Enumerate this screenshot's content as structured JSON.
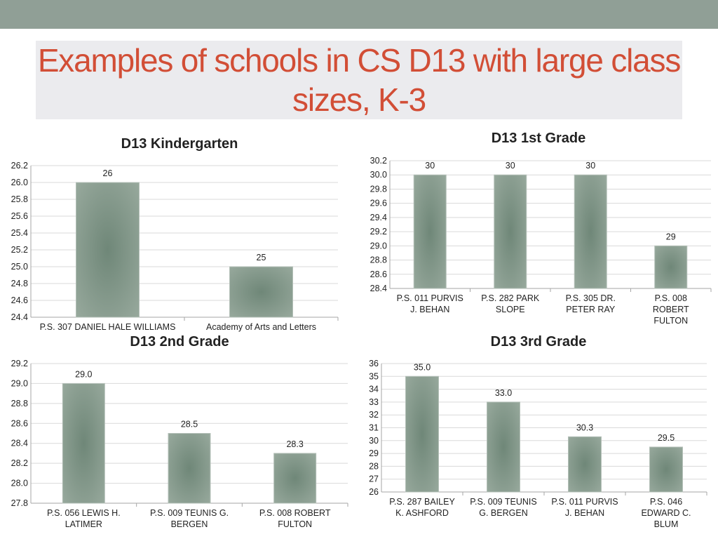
{
  "slide": {
    "title": "Examples of schools in CS D13 with large class sizes, K-3",
    "colors": {
      "top_band": "#909f96",
      "title_box": "#ebebee",
      "title_text": "#d24e36",
      "bar": "#7d9385"
    }
  },
  "chart_data": [
    {
      "type": "bar",
      "title": "D13 Kindergarten",
      "categories": [
        [
          "P.S. 307 DANIEL HALE WILLIAMS"
        ],
        [
          "Academy of Arts and Letters"
        ]
      ],
      "values": [
        26,
        25
      ],
      "data_labels": [
        "26",
        "25"
      ],
      "ylim": [
        24.4,
        26.2
      ],
      "ytick_step": 0.2,
      "ytick_decimals": 1,
      "xlabel": "",
      "ylabel": "",
      "grid": true,
      "legend": "none"
    },
    {
      "type": "bar",
      "title": "D13 1st Grade",
      "categories": [
        [
          "P.S. 011 PURVIS",
          "J. BEHAN"
        ],
        [
          "P.S. 282 PARK",
          "SLOPE"
        ],
        [
          "P.S. 305 DR.",
          "PETER RAY"
        ],
        [
          "P.S. 008",
          "ROBERT",
          "FULTON"
        ]
      ],
      "values": [
        30,
        30,
        30,
        29
      ],
      "data_labels": [
        "30",
        "30",
        "30",
        "29"
      ],
      "ylim": [
        28.4,
        30.2
      ],
      "ytick_step": 0.2,
      "ytick_decimals": 1,
      "xlabel": "",
      "ylabel": "",
      "grid": true,
      "legend": "none"
    },
    {
      "type": "bar",
      "title": "D13 2nd Grade",
      "categories": [
        [
          "P.S. 056 LEWIS H.",
          "LATIMER"
        ],
        [
          "P.S. 009 TEUNIS G.",
          "BERGEN"
        ],
        [
          "P.S. 008 ROBERT",
          "FULTON"
        ]
      ],
      "values": [
        29.0,
        28.5,
        28.3
      ],
      "data_labels": [
        "29.0",
        "28.5",
        "28.3"
      ],
      "ylim": [
        27.8,
        29.2
      ],
      "ytick_step": 0.2,
      "ytick_decimals": 1,
      "xlabel": "",
      "ylabel": "",
      "grid": true,
      "legend": "none"
    },
    {
      "type": "bar",
      "title": "D13 3rd Grade",
      "categories": [
        [
          "P.S. 287 BAILEY",
          "K. ASHFORD"
        ],
        [
          "P.S. 009 TEUNIS",
          "G. BERGEN"
        ],
        [
          "P.S. 011 PURVIS",
          "J. BEHAN"
        ],
        [
          "P.S. 046",
          "EDWARD C.",
          "BLUM"
        ]
      ],
      "values": [
        35.0,
        33.0,
        30.3,
        29.5
      ],
      "data_labels": [
        "35.0",
        "33.0",
        "30.3",
        "29.5"
      ],
      "ylim": [
        26,
        36
      ],
      "ytick_step": 1,
      "ytick_decimals": 0,
      "xlabel": "",
      "ylabel": "",
      "grid": true,
      "legend": "none"
    }
  ]
}
